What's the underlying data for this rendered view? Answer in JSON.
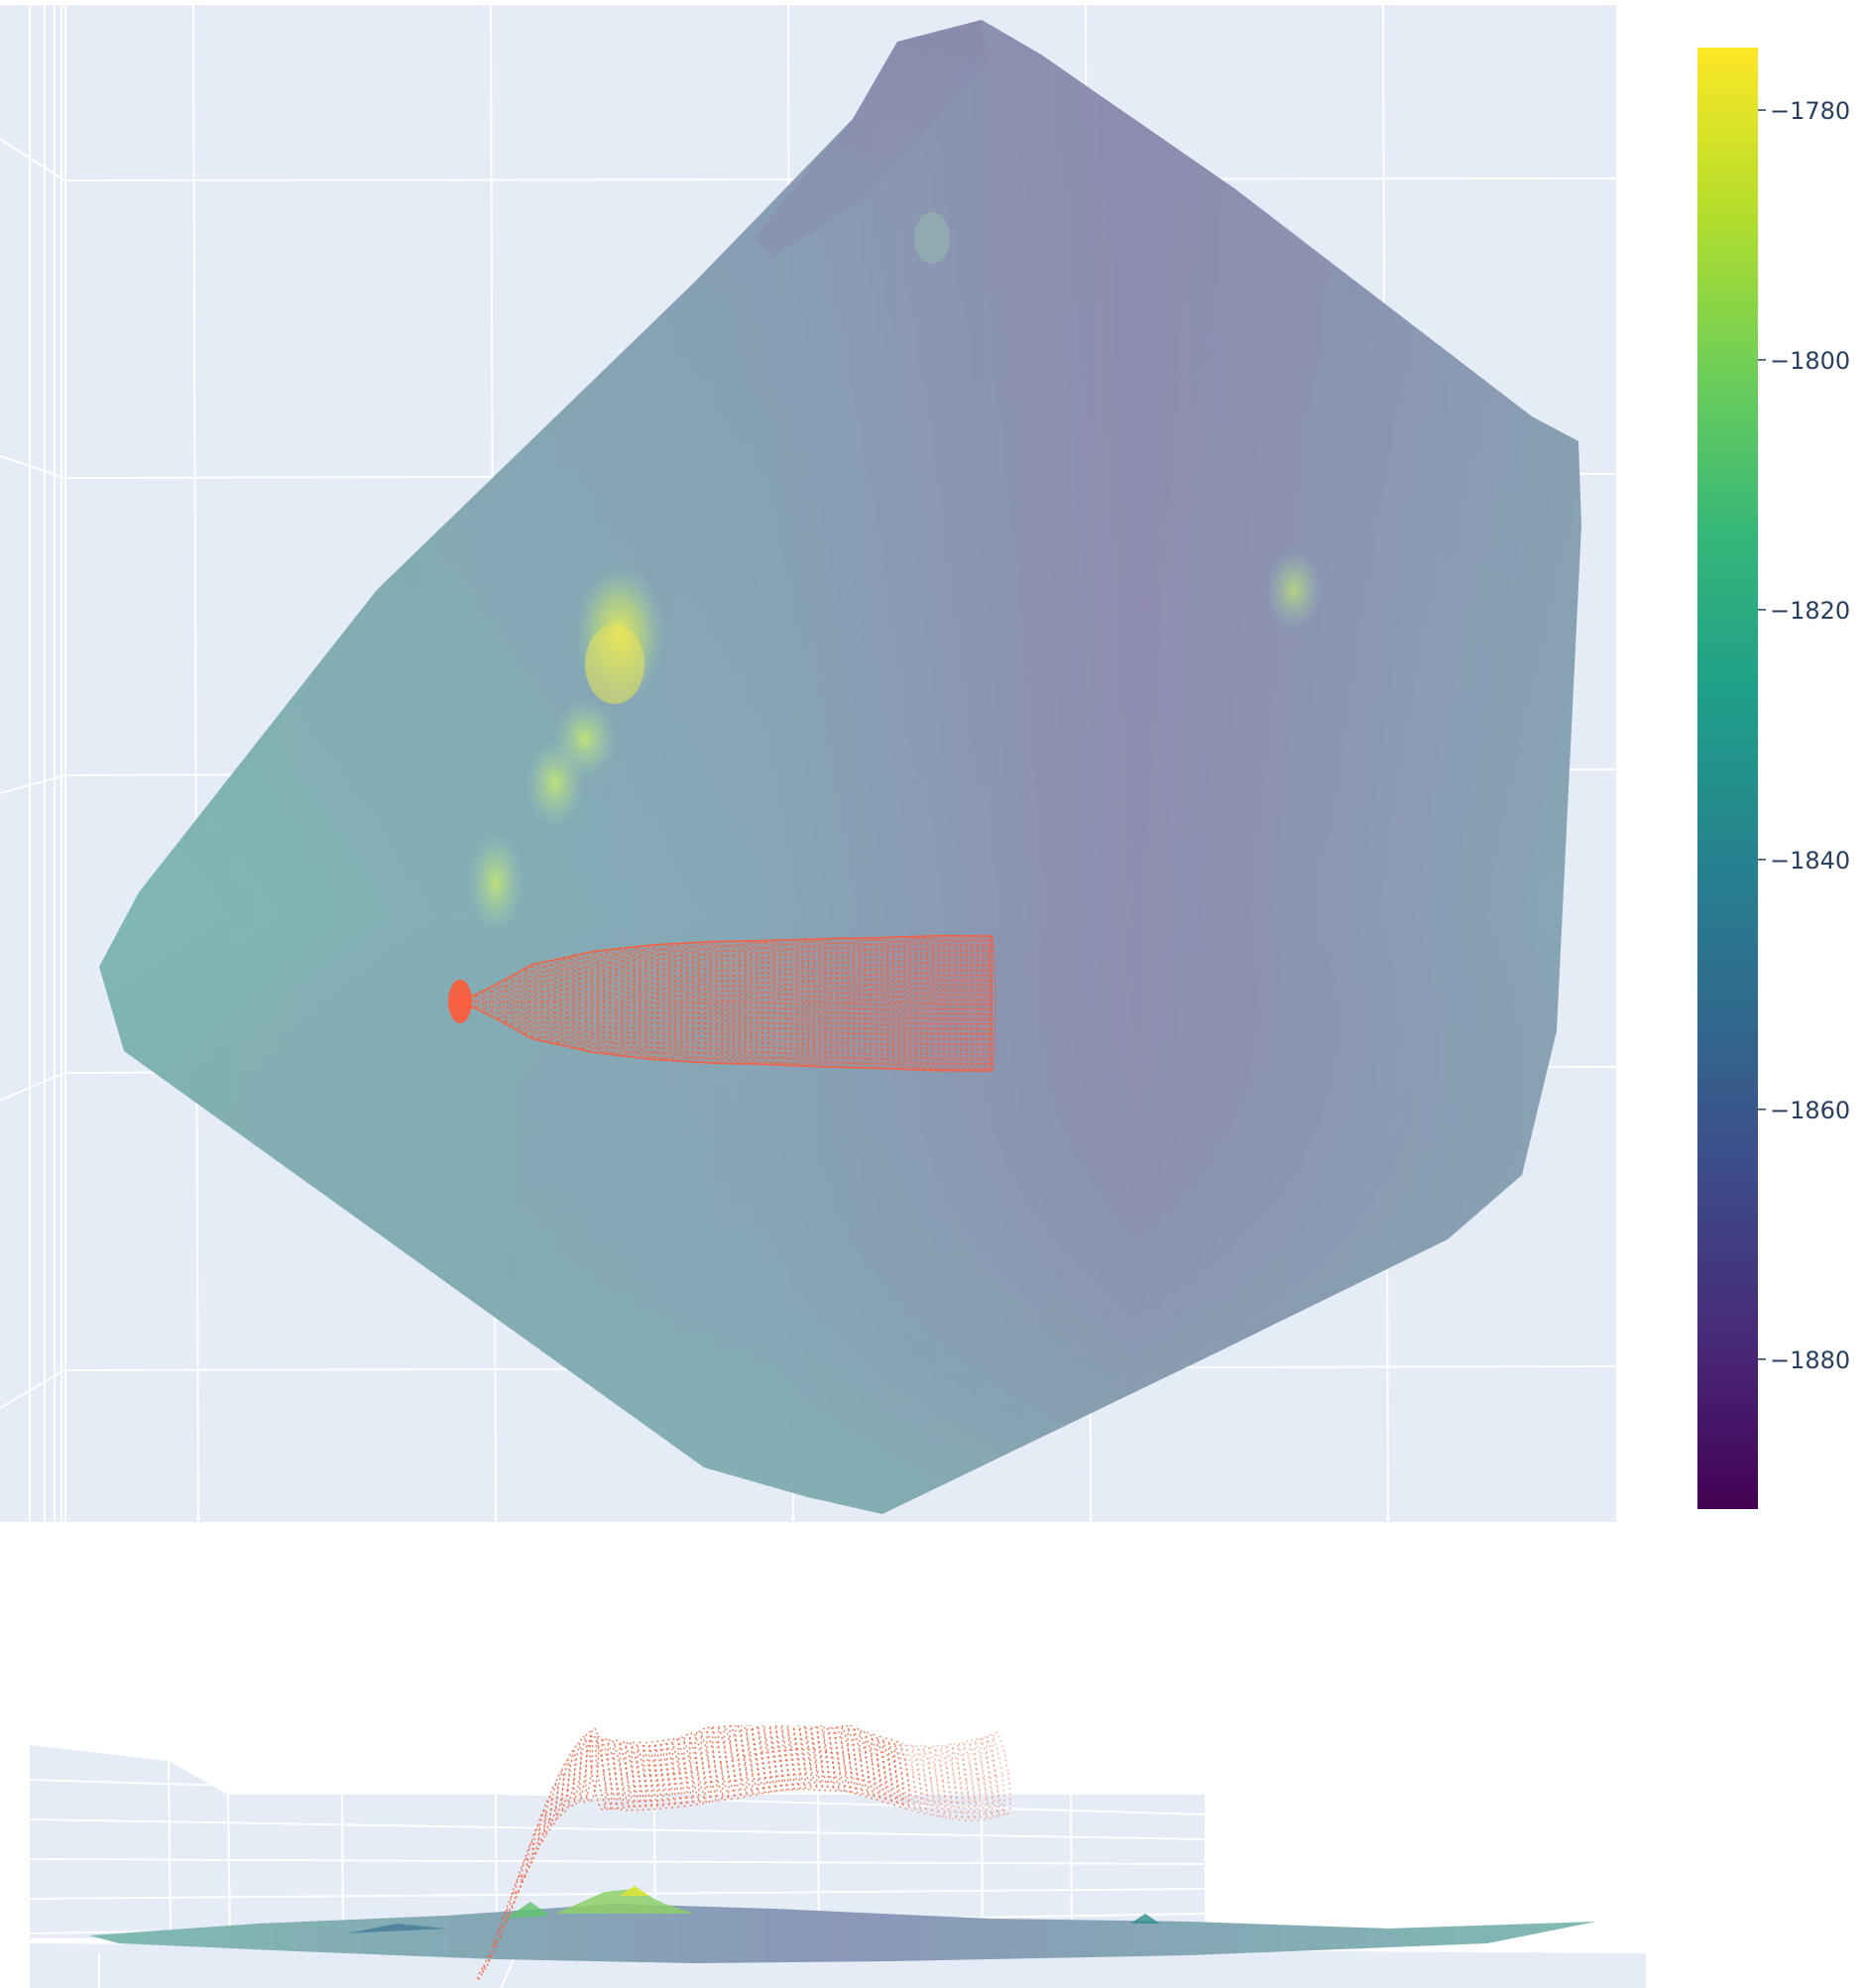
{
  "chart_data": [
    {
      "type": "surface3d",
      "view": "top-down",
      "colorscale": "Viridis",
      "surface_opacity": 0.45,
      "scene_background": "#e5ecf6",
      "grid": true,
      "overlay": {
        "type": "tube-mesh",
        "color": "#ff5a36",
        "cross_sections": 90,
        "profile_rel_halfwidth": [
          0.0,
          0.55,
          0.75,
          0.85,
          0.9,
          0.92,
          0.95,
          0.97,
          1.0,
          1.0
        ]
      }
    },
    {
      "type": "surface3d",
      "view": "side",
      "colorscale": "Viridis",
      "scene_background": "#e5ecf6",
      "grid": true,
      "overlay": {
        "type": "tube-mesh",
        "color": "#ff5a36",
        "cross_sections": 90
      }
    }
  ],
  "colorbar": {
    "colorscale": "Viridis",
    "range": [
      -1892,
      -1775
    ],
    "ticks": [
      {
        "value": -1780,
        "label": "−1780"
      },
      {
        "value": -1800,
        "label": "−1800"
      },
      {
        "value": -1820,
        "label": "−1820"
      },
      {
        "value": -1840,
        "label": "−1840"
      },
      {
        "value": -1860,
        "label": "−1860"
      },
      {
        "value": -1880,
        "label": "−1880"
      }
    ],
    "stops": [
      "#440154",
      "#482878",
      "#3e4989",
      "#31688e",
      "#26828e",
      "#1f9e89",
      "#35b779",
      "#6ece58",
      "#b5de2b",
      "#fde725"
    ]
  }
}
